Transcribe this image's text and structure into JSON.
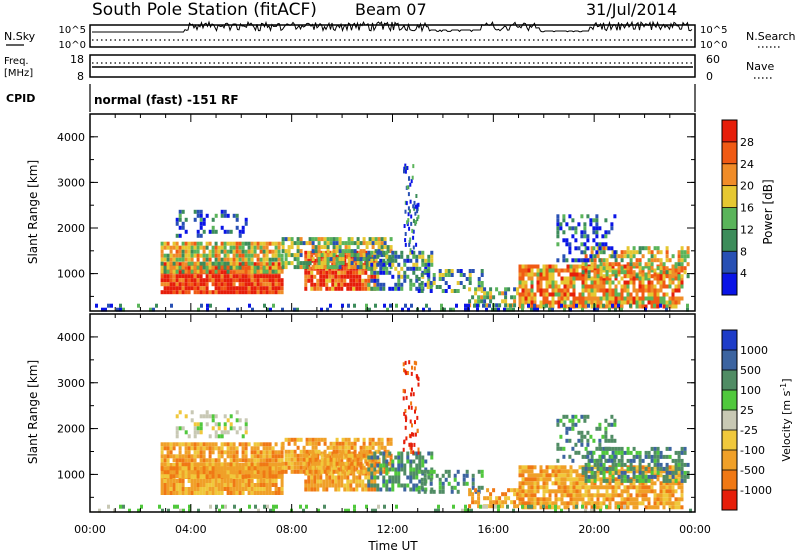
{
  "header": {
    "title": "South Pole Station (fitACF)",
    "beam": "Beam 07",
    "date": "31/Jul/2014"
  },
  "top_panels": {
    "nsky_label": "N.Sky",
    "nsky_ticks": [
      "10^5",
      "10^0"
    ],
    "nsearch_label": "N.Search",
    "nsearch_ticks": [
      "10^5",
      "10^0"
    ],
    "freq_label": "Freq.",
    "freq_unit": "[MHz]",
    "freq_ticks": [
      "18",
      "8"
    ],
    "nave_label": "Nave",
    "nave_ticks": [
      "60",
      "0"
    ],
    "cpid_label": "CPID",
    "cpid_text": "normal (fast) -151 RF"
  },
  "chart_data": [
    {
      "type": "heatmap",
      "name": "power-panel",
      "ylabel": "Slant Range [km]",
      "xlim": [
        0,
        24
      ],
      "ylim": [
        180,
        4500
      ],
      "yticks": [
        "1000",
        "2000",
        "3000",
        "4000"
      ],
      "colorbar": {
        "label": "Power [dB]",
        "ticks": [
          "4",
          "8",
          "12",
          "16",
          "20",
          "24",
          "28"
        ],
        "colors": [
          "#0a14e6",
          "#2850b4",
          "#3c8c5a",
          "#5ab45a",
          "#e6c832",
          "#f08c28",
          "#f05a14",
          "#e61e0a"
        ]
      }
    },
    {
      "type": "heatmap",
      "name": "velocity-panel",
      "ylabel": "Slant Range [km]",
      "xlabel": "Time UT",
      "xlim": [
        0,
        24
      ],
      "ylim": [
        180,
        4500
      ],
      "yticks": [
        "1000",
        "2000",
        "3000",
        "4000"
      ],
      "xticks": [
        "00:00",
        "04:00",
        "08:00",
        "12:00",
        "16:00",
        "20:00",
        "00:00"
      ],
      "colorbar": {
        "label": "Velocity [m s",
        "label_sup": "-1",
        "label_end": "]",
        "ticks": [
          "1000",
          "500",
          "100",
          "25",
          "-25",
          "-100",
          "-500",
          "-1000"
        ],
        "colors": [
          "#1e3cc8",
          "#3c64a0",
          "#508c64",
          "#50c83c",
          "#c8c8b4",
          "#f0c83c",
          "#f0a028",
          "#f07814",
          "#e61e0a"
        ]
      }
    }
  ]
}
